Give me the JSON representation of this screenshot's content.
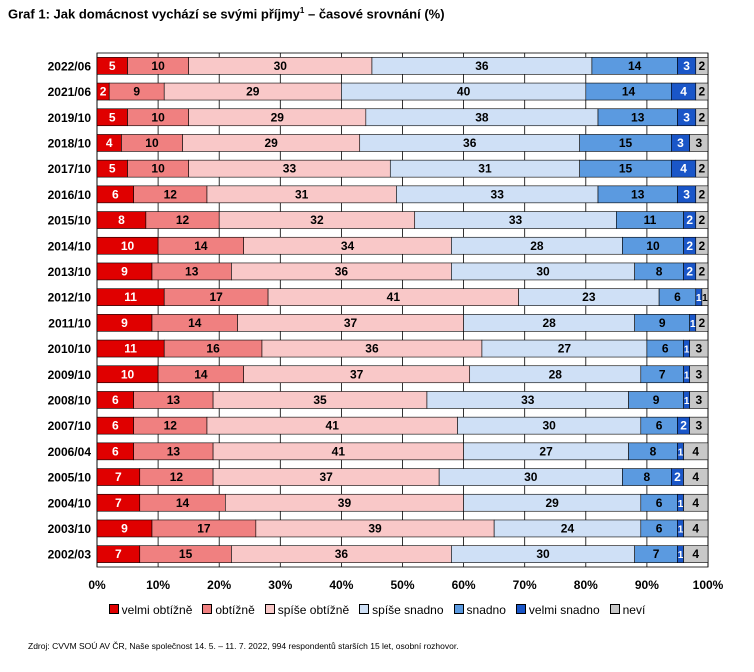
{
  "title": "Graf 1: Jak domácnost vychází se svými příjmy",
  "title_superscript": "1",
  "title_suffix": " – časové srovnání (%)",
  "source": "Zdroj: CVVM SOÚ AV ČR, Naše společnost 14. 5. – 11. 7. 2022, 994 respondentů starších 15 let, osobní rozhovor.",
  "chart_data": {
    "type": "bar",
    "orientation": "horizontal",
    "stacked": true,
    "title": "Graf 1: Jak domácnost vychází se svými příjmy1 – časové srovnání (%)",
    "xlabel": "",
    "ylabel": "",
    "xlim": [
      0,
      100
    ],
    "x_ticks": [
      "0%",
      "10%",
      "20%",
      "30%",
      "40%",
      "50%",
      "60%",
      "70%",
      "80%",
      "90%",
      "100%"
    ],
    "legend_position": "bottom",
    "grid": true,
    "categories": [
      "2022/06",
      "2021/06",
      "2019/10",
      "2018/10",
      "2017/10",
      "2016/10",
      "2015/10",
      "2014/10",
      "2013/10",
      "2012/10",
      "2011/10",
      "2010/10",
      "2009/10",
      "2008/10",
      "2007/10",
      "2006/04",
      "2005/10",
      "2004/10",
      "2003/10",
      "2002/03"
    ],
    "series": [
      {
        "name": "velmi obtížně",
        "color": "#e00000",
        "values": [
          5,
          2,
          5,
          4,
          5,
          6,
          8,
          10,
          9,
          11,
          9,
          11,
          10,
          6,
          6,
          6,
          7,
          7,
          9,
          7
        ]
      },
      {
        "name": "obtížně",
        "color": "#f08080",
        "values": [
          10,
          9,
          10,
          10,
          10,
          12,
          12,
          14,
          13,
          17,
          14,
          16,
          14,
          13,
          12,
          13,
          12,
          14,
          17,
          15
        ]
      },
      {
        "name": "spíše obtížně",
        "color": "#f9c8c8",
        "values": [
          30,
          29,
          29,
          29,
          33,
          31,
          32,
          34,
          36,
          41,
          37,
          36,
          37,
          35,
          41,
          41,
          37,
          39,
          39,
          36
        ]
      },
      {
        "name": "spíše snadno",
        "color": "#cfe0f6",
        "values": [
          36,
          40,
          38,
          36,
          31,
          33,
          33,
          28,
          30,
          23,
          28,
          27,
          28,
          33,
          30,
          27,
          30,
          29,
          24,
          30
        ]
      },
      {
        "name": "snadno",
        "color": "#5b9ae0",
        "values": [
          14,
          14,
          13,
          15,
          15,
          13,
          11,
          10,
          8,
          6,
          9,
          6,
          7,
          9,
          6,
          8,
          8,
          6,
          6,
          7
        ]
      },
      {
        "name": "velmi snadno",
        "color": "#1a56c8",
        "values": [
          3,
          4,
          3,
          3,
          4,
          3,
          2,
          2,
          2,
          1,
          1,
          1,
          1,
          1,
          2,
          1,
          2,
          1,
          1,
          1
        ]
      },
      {
        "name": "neví",
        "color": "#c8c8c8",
        "values": [
          2,
          2,
          2,
          3,
          2,
          2,
          2,
          2,
          2,
          1,
          2,
          3,
          3,
          3,
          3,
          4,
          4,
          4,
          4,
          4
        ]
      }
    ]
  }
}
